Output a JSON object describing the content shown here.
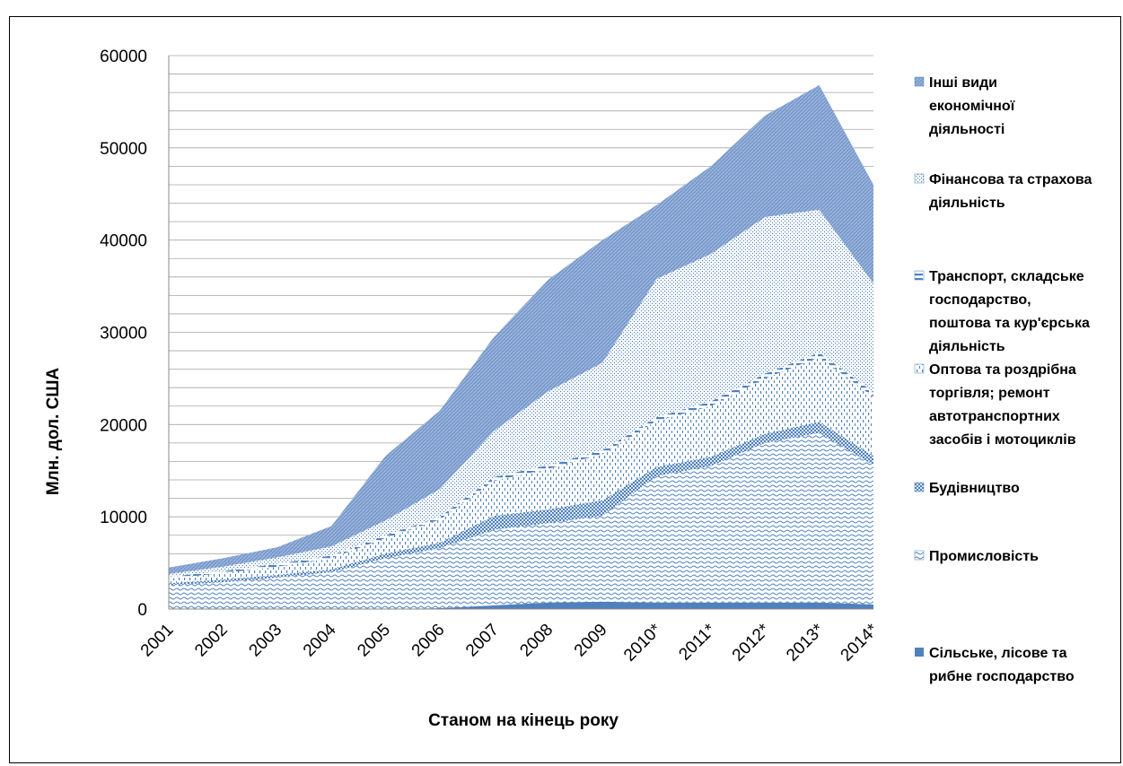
{
  "chart_data": {
    "type": "area",
    "stacked": true,
    "title": "",
    "xlabel": "Станом на кінець року",
    "ylabel": "Млн. дол. США",
    "ylim": [
      0,
      60000
    ],
    "yticks": [
      0,
      10000,
      20000,
      30000,
      40000,
      50000,
      60000
    ],
    "ytick_labels": [
      "0",
      "10000",
      "20000",
      "30000",
      "40000",
      "50000",
      "60000"
    ],
    "grid": "horizontal",
    "legend_position": "right",
    "categories": [
      "2001",
      "2002",
      "2003",
      "2004",
      "2005",
      "2006",
      "2007",
      "2008",
      "2009",
      "2010*",
      "2011*",
      "2012*",
      "2013*",
      "2014*"
    ],
    "series": [
      {
        "name": "Сільське, лісове та рибне господарство",
        "color": "#4f81bd",
        "pattern": "solid",
        "values": [
          0,
          0,
          0,
          0,
          0,
          100,
          400,
          700,
          800,
          700,
          700,
          700,
          700,
          500
        ]
      },
      {
        "name": "Промисловість",
        "color": "#4f81bd",
        "pattern": "waves",
        "values": [
          2600,
          2900,
          3400,
          4000,
          5500,
          6500,
          8200,
          8600,
          9300,
          13700,
          14800,
          17300,
          18400,
          15100
        ]
      },
      {
        "name": "Будівництво",
        "color": "#4f81bd",
        "pattern": "checker",
        "values": [
          200,
          300,
          300,
          300,
          500,
          600,
          1500,
          1500,
          1700,
          1000,
          1000,
          1000,
          1200,
          1000
        ]
      },
      {
        "name": "Оптова та роздрібна торгівля; ремонт автотранспортних засобів і мотоциклів",
        "color": "#4f81bd",
        "pattern": "vdots",
        "values": [
          500,
          700,
          900,
          1200,
          1700,
          2500,
          3800,
          4400,
          5000,
          5000,
          5500,
          6000,
          7000,
          6400
        ]
      },
      {
        "name": "Транспорт, складське господарство, поштова та кур'єрська діяльність",
        "color": "#4f81bd",
        "pattern": "dashes",
        "values": [
          200,
          200,
          300,
          300,
          300,
          300,
          400,
          400,
          400,
          400,
          500,
          500,
          500,
          500
        ]
      },
      {
        "name": "Фінансова та страхова діяльність",
        "color": "#4f81bd",
        "pattern": "dots",
        "values": [
          300,
          500,
          700,
          1000,
          1600,
          3000,
          5000,
          8000,
          9500,
          15000,
          16000,
          17000,
          15500,
          11800
        ]
      },
      {
        "name": "Інші види економічної діяльності",
        "color": "#4f81bd",
        "pattern": "diag",
        "values": [
          700,
          900,
          1100,
          2200,
          7000,
          8500,
          10200,
          12100,
          13300,
          8000,
          9500,
          11000,
          13500,
          10700
        ]
      }
    ]
  }
}
